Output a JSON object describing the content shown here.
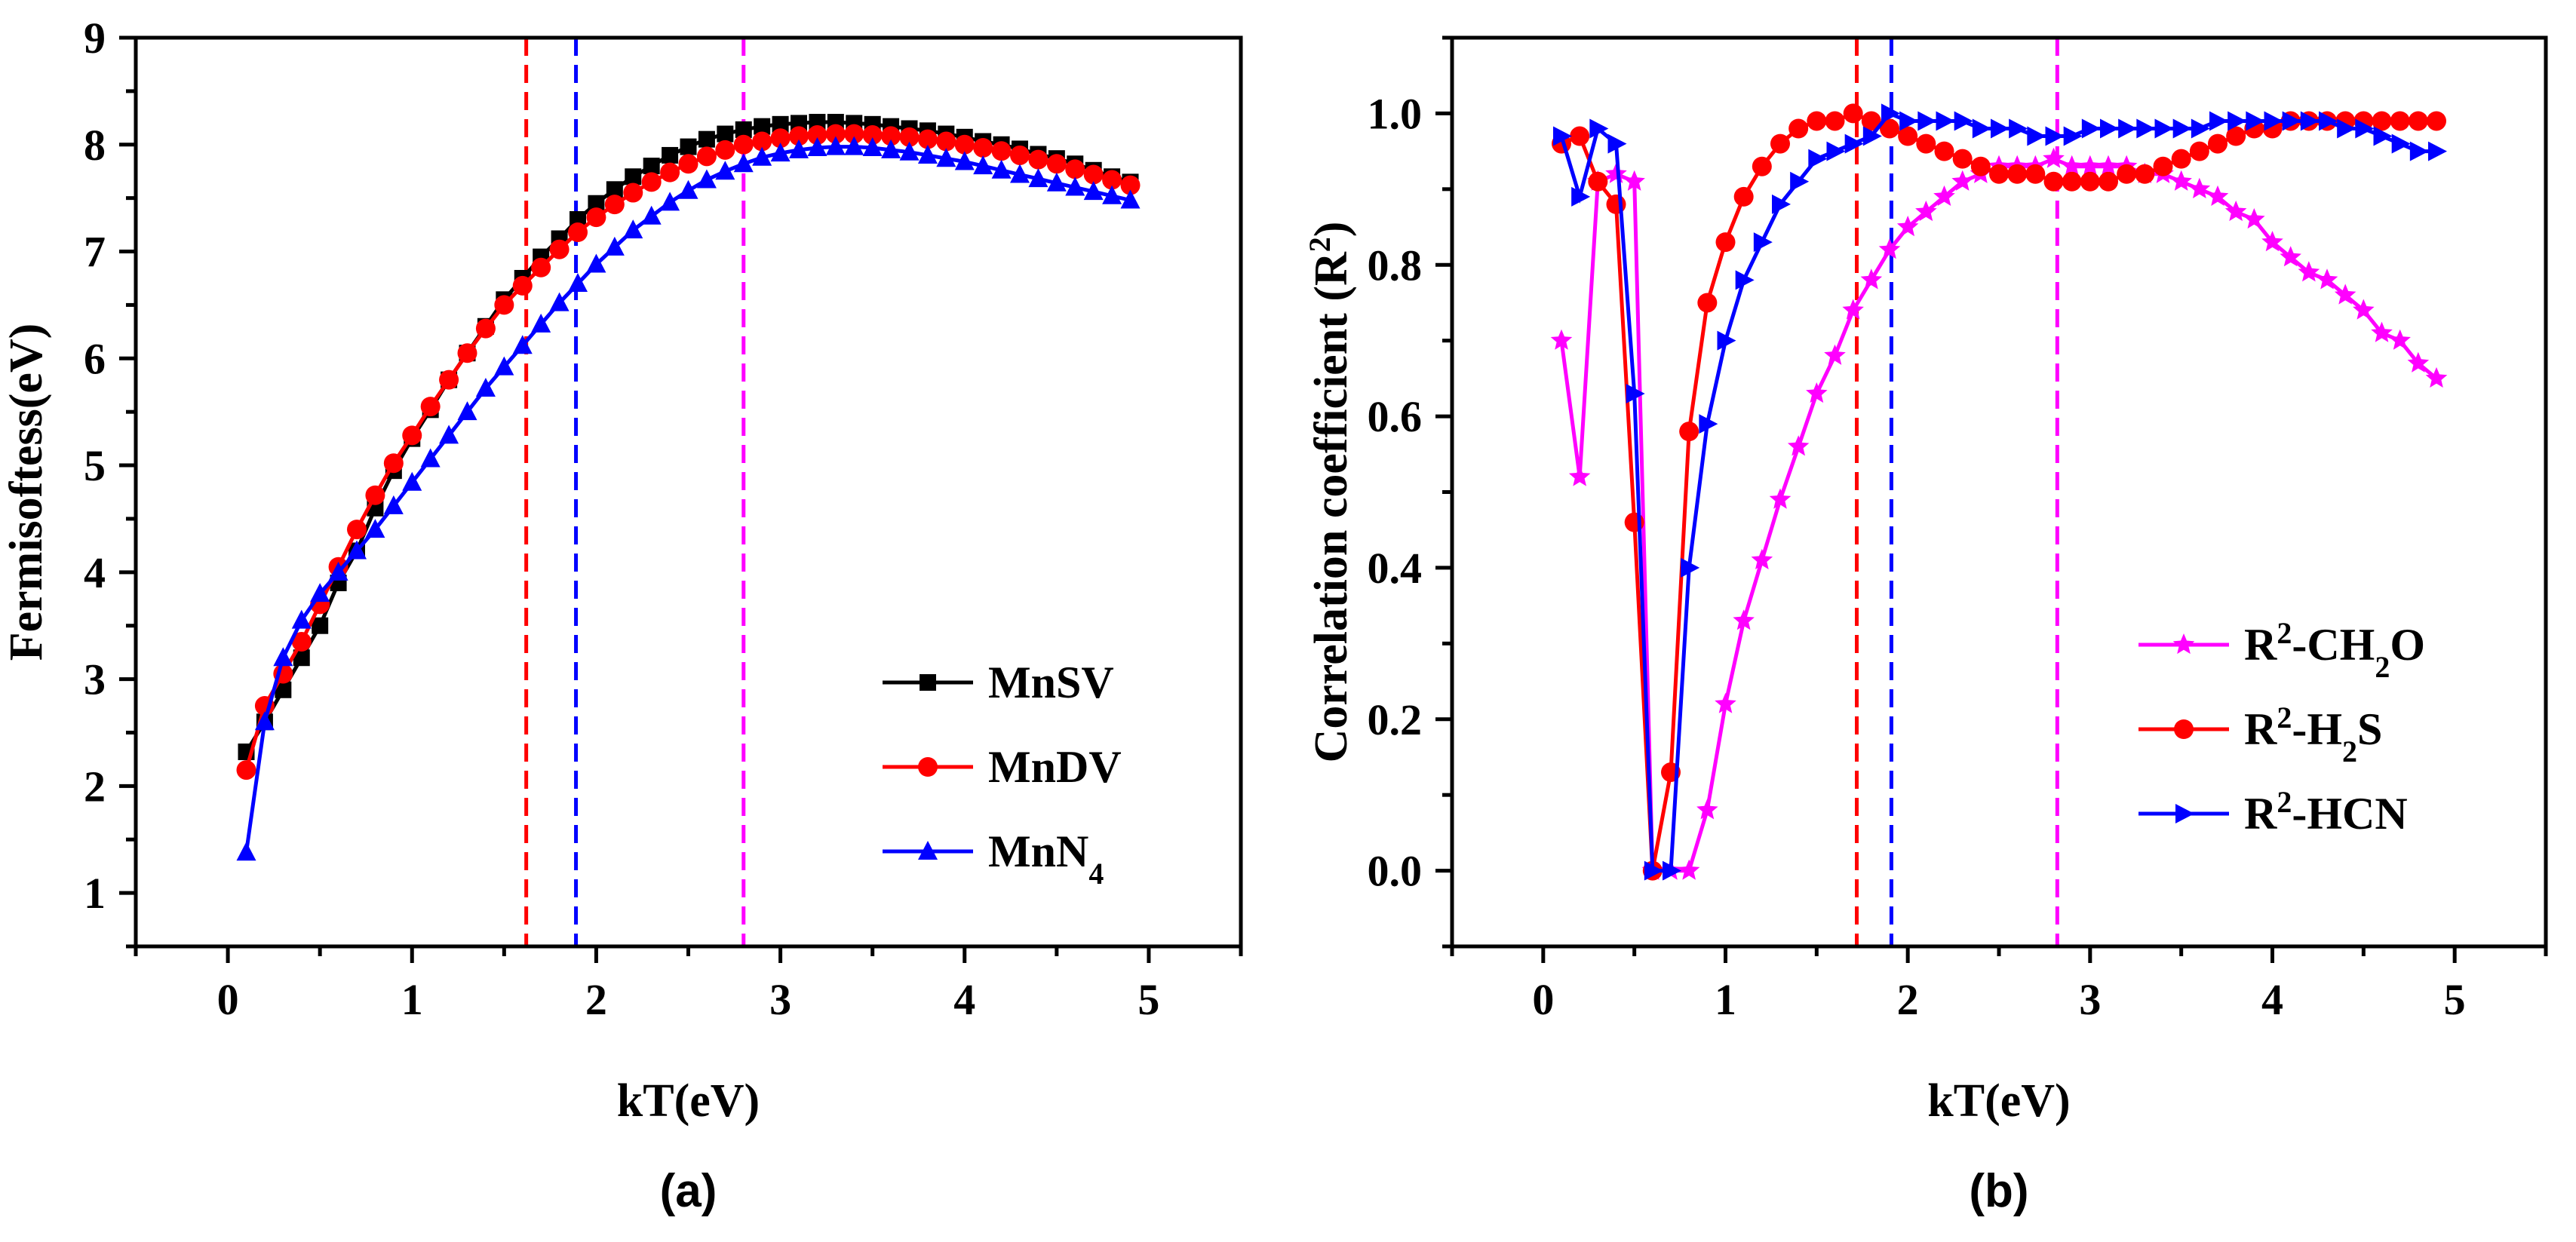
{
  "charts": [
    {
      "id": "a",
      "type": "line",
      "panel_label": "(a)",
      "xlabel": "kT(eV)",
      "ylabel": "Fermisoftess(eV)",
      "xlim": [
        -0.5,
        5.5
      ],
      "ylim": [
        0.5,
        9
      ],
      "xticks": [
        0,
        1,
        2,
        3,
        4,
        5
      ],
      "xtick_labels": [
        "0",
        "1",
        "2",
        "3",
        "4",
        "5"
      ],
      "yticks": [
        1,
        2,
        3,
        4,
        5,
        6,
        7,
        8,
        9
      ],
      "ytick_labels": [
        "1",
        "2",
        "3",
        "4",
        "5",
        "6",
        "7",
        "8",
        "9"
      ],
      "vlines": [
        {
          "x": 1.62,
          "color": "#ff0000"
        },
        {
          "x": 1.89,
          "color": "#0000ff"
        },
        {
          "x": 2.8,
          "color": "#ff00ff"
        }
      ],
      "series": [
        {
          "name": "MnSV",
          "legend_parts": [
            {
              "t": "MnSV",
              "sub": false
            }
          ],
          "color": "#000000",
          "marker": "square",
          "x": [
            0.1,
            0.2,
            0.3,
            0.4,
            0.5,
            0.6,
            0.7,
            0.8,
            0.9,
            1.0,
            1.1,
            1.2,
            1.3,
            1.4,
            1.5,
            1.6,
            1.7,
            1.8,
            1.9,
            2.0,
            2.1,
            2.2,
            2.3,
            2.4,
            2.5,
            2.6,
            2.7,
            2.8,
            2.9,
            3.0,
            3.1,
            3.2,
            3.3,
            3.4,
            3.5,
            3.6,
            3.7,
            3.8,
            3.9,
            4.0,
            4.1,
            4.2,
            4.3,
            4.4,
            4.5,
            4.6,
            4.7,
            4.8,
            4.9
          ],
          "values": [
            2.32,
            2.6,
            2.9,
            3.2,
            3.5,
            3.9,
            4.2,
            4.6,
            4.95,
            5.25,
            5.52,
            5.8,
            6.05,
            6.3,
            6.55,
            6.75,
            6.95,
            7.12,
            7.3,
            7.45,
            7.58,
            7.7,
            7.8,
            7.9,
            7.98,
            8.05,
            8.1,
            8.14,
            8.17,
            8.19,
            8.2,
            8.21,
            8.21,
            8.2,
            8.19,
            8.17,
            8.15,
            8.13,
            8.1,
            8.07,
            8.03,
            8.0,
            7.96,
            7.91,
            7.87,
            7.82,
            7.76,
            7.7,
            7.65
          ]
        },
        {
          "name": "MnDV",
          "legend_parts": [
            {
              "t": "MnDV",
              "sub": false
            }
          ],
          "color": "#ff0000",
          "marker": "circle",
          "x": [
            0.1,
            0.2,
            0.3,
            0.4,
            0.5,
            0.6,
            0.7,
            0.8,
            0.9,
            1.0,
            1.1,
            1.2,
            1.3,
            1.4,
            1.5,
            1.6,
            1.7,
            1.8,
            1.9,
            2.0,
            2.1,
            2.2,
            2.3,
            2.4,
            2.5,
            2.6,
            2.7,
            2.8,
            2.9,
            3.0,
            3.1,
            3.2,
            3.3,
            3.4,
            3.5,
            3.6,
            3.7,
            3.8,
            3.9,
            4.0,
            4.1,
            4.2,
            4.3,
            4.4,
            4.5,
            4.6,
            4.7,
            4.8,
            4.9
          ],
          "values": [
            2.15,
            2.75,
            3.05,
            3.35,
            3.7,
            4.05,
            4.4,
            4.72,
            5.02,
            5.28,
            5.55,
            5.8,
            6.05,
            6.28,
            6.5,
            6.68,
            6.85,
            7.02,
            7.18,
            7.32,
            7.44,
            7.55,
            7.65,
            7.74,
            7.82,
            7.89,
            7.95,
            8.0,
            8.03,
            8.06,
            8.08,
            8.09,
            8.1,
            8.1,
            8.09,
            8.08,
            8.07,
            8.05,
            8.03,
            8.0,
            7.97,
            7.94,
            7.9,
            7.86,
            7.82,
            7.77,
            7.72,
            7.67,
            7.62
          ]
        },
        {
          "name": "MnN4",
          "legend_parts": [
            {
              "t": "MnN",
              "sub": false
            },
            {
              "t": "4",
              "sub": true
            }
          ],
          "color": "#0000ff",
          "marker": "triangle",
          "x": [
            0.1,
            0.2,
            0.3,
            0.4,
            0.5,
            0.6,
            0.7,
            0.8,
            0.9,
            1.0,
            1.1,
            1.2,
            1.3,
            1.4,
            1.5,
            1.6,
            1.7,
            1.8,
            1.9,
            2.0,
            2.1,
            2.2,
            2.3,
            2.4,
            2.5,
            2.6,
            2.7,
            2.8,
            2.9,
            3.0,
            3.1,
            3.2,
            3.3,
            3.4,
            3.5,
            3.6,
            3.7,
            3.8,
            3.9,
            4.0,
            4.1,
            4.2,
            4.3,
            4.4,
            4.5,
            4.6,
            4.7,
            4.8,
            4.9
          ],
          "values": [
            1.38,
            2.6,
            3.2,
            3.55,
            3.8,
            4.0,
            4.2,
            4.4,
            4.62,
            4.84,
            5.06,
            5.28,
            5.5,
            5.72,
            5.92,
            6.12,
            6.32,
            6.52,
            6.7,
            6.88,
            7.04,
            7.2,
            7.33,
            7.46,
            7.57,
            7.67,
            7.75,
            7.82,
            7.88,
            7.92,
            7.95,
            7.97,
            7.98,
            7.98,
            7.97,
            7.95,
            7.93,
            7.9,
            7.87,
            7.84,
            7.8,
            7.76,
            7.72,
            7.68,
            7.64,
            7.6,
            7.56,
            7.52,
            7.48
          ]
        }
      ],
      "legend_position": "bottom-right"
    },
    {
      "id": "b",
      "type": "line",
      "panel_label": "(b)",
      "xlabel": "kT(eV)",
      "ylabel_parts": [
        {
          "t": "Correlation coefficient (R",
          "sup": false
        },
        {
          "t": "2",
          "sup": true
        },
        {
          "t": ")",
          "sup": false
        }
      ],
      "xlim": [
        -0.5,
        5.5
      ],
      "ylim": [
        -0.1,
        1.1
      ],
      "xticks": [
        0,
        1,
        2,
        3,
        4,
        5
      ],
      "xtick_labels": [
        "0",
        "1",
        "2",
        "3",
        "4",
        "5"
      ],
      "yticks": [
        0,
        0.2,
        0.4,
        0.6,
        0.8,
        1.0
      ],
      "ytick_labels": [
        "0.0",
        "0.2",
        "0.4",
        "0.6",
        "0.8",
        "1.0"
      ],
      "vlines": [
        {
          "x": 1.72,
          "color": "#ff0000"
        },
        {
          "x": 1.91,
          "color": "#0000ff"
        },
        {
          "x": 2.82,
          "color": "#ff00ff"
        }
      ],
      "series": [
        {
          "name": "R2-CH2O",
          "legend_parts": [
            {
              "t": "R",
              "mode": ""
            },
            {
              "t": "2",
              "mode": "sup"
            },
            {
              "t": "-CH",
              "mode": ""
            },
            {
              "t": "2",
              "mode": "sub"
            },
            {
              "t": "O",
              "mode": ""
            }
          ],
          "color": "#ff00ff",
          "marker": "star",
          "x": [
            0.1,
            0.2,
            0.3,
            0.4,
            0.5,
            0.6,
            0.7,
            0.8,
            0.9,
            1.0,
            1.1,
            1.2,
            1.3,
            1.4,
            1.5,
            1.6,
            1.7,
            1.8,
            1.9,
            2.0,
            2.1,
            2.2,
            2.3,
            2.4,
            2.5,
            2.6,
            2.7,
            2.8,
            2.9,
            3.0,
            3.1,
            3.2,
            3.3,
            3.4,
            3.5,
            3.6,
            3.7,
            3.8,
            3.9,
            4.0,
            4.1,
            4.2,
            4.3,
            4.4,
            4.5,
            4.6,
            4.7,
            4.8,
            4.9
          ],
          "values": [
            0.7,
            0.52,
            0.91,
            0.92,
            0.91,
            0.0,
            0.0,
            0.0,
            0.08,
            0.22,
            0.33,
            0.41,
            0.49,
            0.56,
            0.63,
            0.68,
            0.74,
            0.78,
            0.82,
            0.85,
            0.87,
            0.89,
            0.91,
            0.92,
            0.93,
            0.93,
            0.93,
            0.94,
            0.93,
            0.93,
            0.93,
            0.93,
            0.92,
            0.92,
            0.91,
            0.9,
            0.89,
            0.87,
            0.86,
            0.83,
            0.81,
            0.79,
            0.78,
            0.76,
            0.74,
            0.71,
            0.7,
            0.67,
            0.65
          ]
        },
        {
          "name": "R2-H2S",
          "legend_parts": [
            {
              "t": "R",
              "mode": ""
            },
            {
              "t": "2",
              "mode": "sup"
            },
            {
              "t": "-H",
              "mode": ""
            },
            {
              "t": "2",
              "mode": "sub"
            },
            {
              "t": "S",
              "mode": ""
            }
          ],
          "color": "#ff0000",
          "marker": "circle",
          "x": [
            0.1,
            0.2,
            0.3,
            0.4,
            0.5,
            0.6,
            0.7,
            0.8,
            0.9,
            1.0,
            1.1,
            1.2,
            1.3,
            1.4,
            1.5,
            1.6,
            1.7,
            1.8,
            1.9,
            2.0,
            2.1,
            2.2,
            2.3,
            2.4,
            2.5,
            2.6,
            2.7,
            2.8,
            2.9,
            3.0,
            3.1,
            3.2,
            3.3,
            3.4,
            3.5,
            3.6,
            3.7,
            3.8,
            3.9,
            4.0,
            4.1,
            4.2,
            4.3,
            4.4,
            4.5,
            4.6,
            4.7,
            4.8,
            4.9
          ],
          "values": [
            0.96,
            0.97,
            0.91,
            0.88,
            0.46,
            0.0,
            0.13,
            0.58,
            0.75,
            0.83,
            0.89,
            0.93,
            0.96,
            0.98,
            0.99,
            0.99,
            1.0,
            0.99,
            0.98,
            0.97,
            0.96,
            0.95,
            0.94,
            0.93,
            0.92,
            0.92,
            0.92,
            0.91,
            0.91,
            0.91,
            0.91,
            0.92,
            0.92,
            0.93,
            0.94,
            0.95,
            0.96,
            0.97,
            0.98,
            0.98,
            0.99,
            0.99,
            0.99,
            0.99,
            0.99,
            0.99,
            0.99,
            0.99,
            0.99
          ]
        },
        {
          "name": "R2-HCN",
          "legend_parts": [
            {
              "t": "R",
              "mode": ""
            },
            {
              "t": "2",
              "mode": "sup"
            },
            {
              "t": "-HCN",
              "mode": ""
            }
          ],
          "color": "#0000ff",
          "marker": "triangle-right",
          "x": [
            0.1,
            0.2,
            0.3,
            0.4,
            0.5,
            0.6,
            0.7,
            0.8,
            0.9,
            1.0,
            1.1,
            1.2,
            1.3,
            1.4,
            1.5,
            1.6,
            1.7,
            1.8,
            1.9,
            2.0,
            2.1,
            2.2,
            2.3,
            2.4,
            2.5,
            2.6,
            2.7,
            2.8,
            2.9,
            3.0,
            3.1,
            3.2,
            3.3,
            3.4,
            3.5,
            3.6,
            3.7,
            3.8,
            3.9,
            4.0,
            4.1,
            4.2,
            4.3,
            4.4,
            4.5,
            4.6,
            4.7,
            4.8,
            4.9
          ],
          "values": [
            0.97,
            0.89,
            0.98,
            0.96,
            0.63,
            0.0,
            0.0,
            0.4,
            0.59,
            0.7,
            0.78,
            0.83,
            0.88,
            0.91,
            0.94,
            0.95,
            0.96,
            0.97,
            1.0,
            0.99,
            0.99,
            0.99,
            0.99,
            0.98,
            0.98,
            0.98,
            0.97,
            0.97,
            0.97,
            0.98,
            0.98,
            0.98,
            0.98,
            0.98,
            0.98,
            0.98,
            0.99,
            0.99,
            0.99,
            0.99,
            0.99,
            0.99,
            0.99,
            0.98,
            0.98,
            0.97,
            0.96,
            0.95,
            0.95
          ]
        }
      ],
      "legend_position": "bottom-right"
    }
  ]
}
